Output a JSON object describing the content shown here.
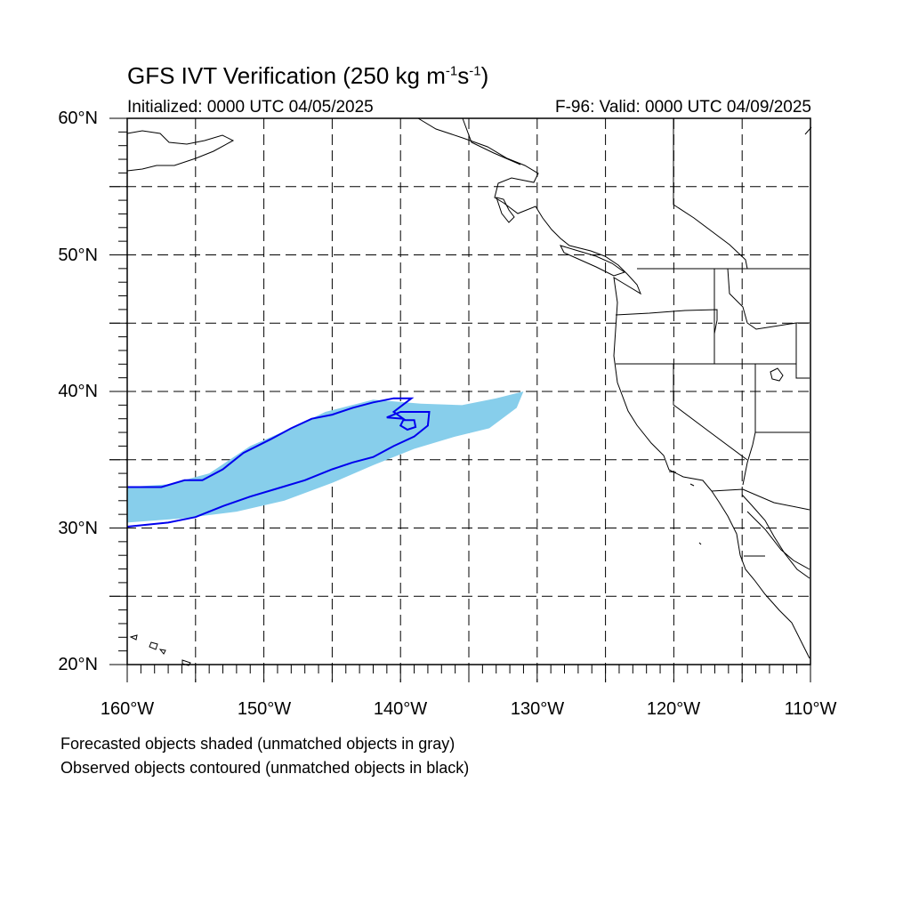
{
  "title": {
    "main": "GFS IVT Verification (250 kg m",
    "sup1": "-1",
    "mid": "s",
    "sup2": "-1",
    "end": ")"
  },
  "initialized": "Initialized: 0000 UTC 04/05/2025",
  "valid": "F-96: Valid: 0000 UTC 04/09/2025",
  "map": {
    "lon_range": [
      -160,
      -110
    ],
    "lat_range": [
      20,
      60
    ],
    "lat_ticks": [
      "60°N",
      "50°N",
      "40°N",
      "30°N",
      "20°N"
    ],
    "lon_ticks": [
      "160°W",
      "150°W",
      "140°W",
      "130°W",
      "120°W",
      "110°W"
    ],
    "grid_spacing_deg": 5,
    "grid": true,
    "colors": {
      "forecast_fill": "#87ceeb",
      "observed_contour": "#0000ee",
      "coastline": "#000000",
      "grid": "#000000"
    }
  },
  "objects": {
    "forecast": {
      "label": "forecast object",
      "polygon": [
        [
          -160.0,
          33.0
        ],
        [
          -157.0,
          33.2
        ],
        [
          -154.0,
          34.0
        ],
        [
          -151.0,
          36.0
        ],
        [
          -148.0,
          37.3
        ],
        [
          -145.5,
          38.5
        ],
        [
          -142.0,
          39.4
        ],
        [
          -138.5,
          39.1
        ],
        [
          -135.5,
          39.0
        ],
        [
          -133.0,
          39.5
        ],
        [
          -131.0,
          40.0
        ],
        [
          -131.5,
          38.8
        ],
        [
          -133.5,
          37.3
        ],
        [
          -136.0,
          36.7
        ],
        [
          -139.0,
          35.8
        ],
        [
          -142.0,
          34.6
        ],
        [
          -145.0,
          33.3
        ],
        [
          -148.5,
          32.0
        ],
        [
          -152.0,
          31.2
        ],
        [
          -156.0,
          30.7
        ],
        [
          -160.0,
          30.4
        ]
      ]
    },
    "observed": {
      "label": "observed object",
      "polygon": [
        [
          -160.0,
          33.0
        ],
        [
          -157.5,
          33.0
        ],
        [
          -155.8,
          33.5
        ],
        [
          -154.5,
          33.5
        ],
        [
          -153.0,
          34.3
        ],
        [
          -151.5,
          35.5
        ],
        [
          -149.5,
          36.5
        ],
        [
          -148.0,
          37.3
        ],
        [
          -146.5,
          38.0
        ],
        [
          -145.0,
          38.3
        ],
        [
          -143.5,
          38.8
        ],
        [
          -142.0,
          39.2
        ],
        [
          -140.5,
          39.5
        ],
        [
          -139.2,
          39.5
        ],
        [
          -140.5,
          38.5
        ],
        [
          -139.8,
          38.0
        ],
        [
          -141.0,
          38.1
        ],
        [
          -140.0,
          38.5
        ],
        [
          -137.9,
          38.5
        ],
        [
          -138.0,
          37.5
        ],
        [
          -139.0,
          36.7
        ],
        [
          -140.5,
          36.0
        ],
        [
          -142.0,
          35.2
        ],
        [
          -143.5,
          34.8
        ],
        [
          -145.0,
          34.3
        ],
        [
          -147.0,
          33.5
        ],
        [
          -149.0,
          32.9
        ],
        [
          -151.0,
          32.3
        ],
        [
          -153.0,
          31.6
        ],
        [
          -155.0,
          30.8
        ],
        [
          -157.0,
          30.4
        ],
        [
          -160.0,
          30.1
        ]
      ],
      "island": [
        [
          -139.8,
          37.9
        ],
        [
          -139.0,
          37.9
        ],
        [
          -138.9,
          37.4
        ],
        [
          -139.5,
          37.2
        ],
        [
          -140.0,
          37.5
        ]
      ]
    }
  },
  "footnotes": [
    "Forecasted objects shaded (unmatched objects in gray)",
    "Observed objects contoured (unmatched objects in black)"
  ]
}
